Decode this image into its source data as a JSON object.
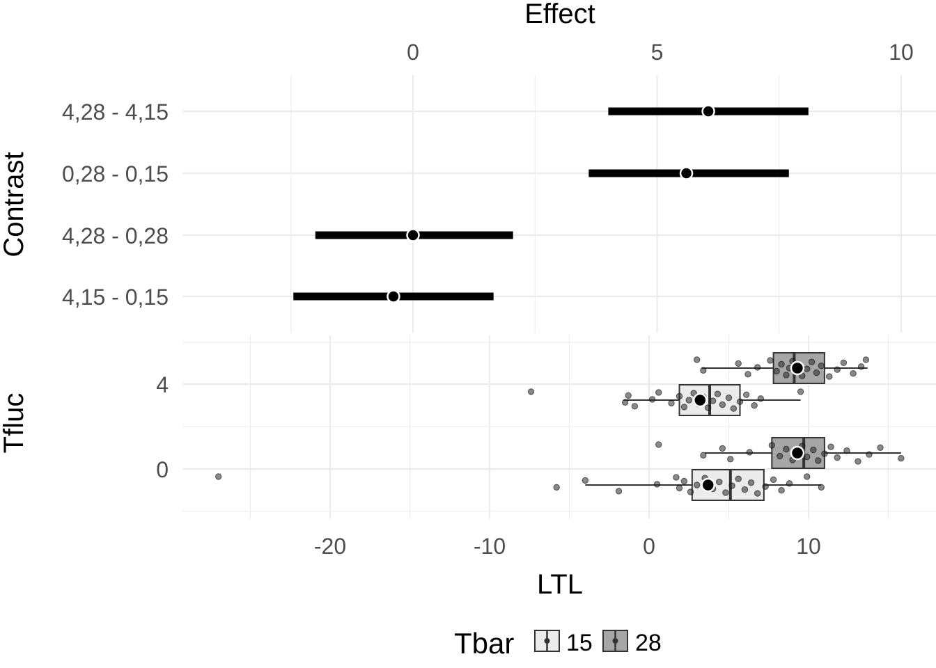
{
  "chart_data": [
    {
      "type": "interval",
      "panel": "top",
      "xlabel": "Effect",
      "ylabel": "Contrast",
      "xaxis_position": "top",
      "xlim": [
        -2.5,
        10.5
      ],
      "xticks": [
        0,
        5,
        10
      ],
      "xtick_labels": [
        "0",
        "5",
        "10"
      ],
      "grid": true,
      "contrasts": [
        {
          "label": "4,28 - 4,15",
          "estimate": 6.05,
          "lower": 4.0,
          "upper": 8.1
        },
        {
          "label": "0,28 - 0,15",
          "estimate": 5.6,
          "lower": 3.6,
          "upper": 7.7
        },
        {
          "label": "4,28 - 0,28",
          "estimate": 0.0,
          "lower": -2.0,
          "upper": 2.05
        },
        {
          "label": "4,15 - 0,15",
          "estimate": -0.4,
          "lower": -2.45,
          "upper": 1.65
        }
      ]
    },
    {
      "type": "boxplot",
      "panel": "bottom",
      "xlabel": "LTL",
      "ylabel": "Tfluc",
      "xlim": [
        -28,
        17
      ],
      "xticks": [
        -20,
        -10,
        0,
        10
      ],
      "xtick_labels": [
        "-20",
        "-10",
        "0",
        "10"
      ],
      "yticks": [
        0,
        4
      ],
      "ytick_labels": [
        "0",
        "4"
      ],
      "grid": true,
      "groups": [
        {
          "tfluc": "4",
          "tbar": "28",
          "fill": "#a6a6a6",
          "whisker_low": 3.3,
          "q1": 7.8,
          "median": 9.1,
          "q3": 11.0,
          "whisker_high": 13.7,
          "mean": 9.3,
          "points": [
            3.0,
            3.4,
            5.6,
            6.2,
            6.8,
            7.6,
            8.0,
            8.3,
            8.6,
            8.8,
            9.0,
            9.2,
            9.4,
            9.6,
            9.9,
            10.2,
            10.5,
            10.8,
            11.3,
            11.8,
            12.2,
            12.8,
            13.3,
            13.6
          ]
        },
        {
          "tfluc": "4",
          "tbar": "15",
          "fill": "#ebebeb",
          "whisker_low": -1.6,
          "q1": 1.9,
          "median": 3.8,
          "q3": 5.7,
          "whisker_high": 9.5,
          "mean": 3.2,
          "points": [
            -7.4,
            -1.5,
            -1.3,
            -0.9,
            0.2,
            0.6,
            1.4,
            1.9,
            2.2,
            2.5,
            2.8,
            3.1,
            3.4,
            3.7,
            4.0,
            4.3,
            4.6,
            5.0,
            5.3,
            5.7,
            6.1,
            6.6,
            7.0,
            9.5
          ]
        },
        {
          "tfluc": "0",
          "tbar": "28",
          "fill": "#a6a6a6",
          "whisker_low": 3.5,
          "q1": 7.7,
          "median": 9.7,
          "q3": 11.0,
          "whisker_high": 15.8,
          "mean": 9.3,
          "points": [
            0.6,
            3.4,
            4.6,
            5.1,
            6.3,
            7.7,
            8.2,
            8.6,
            9.0,
            9.3,
            9.6,
            9.9,
            10.3,
            10.6,
            11.0,
            11.4,
            11.8,
            12.4,
            13.1,
            13.8,
            14.5,
            15.8
          ]
        },
        {
          "tfluc": "0",
          "tbar": "15",
          "fill": "#ebebeb",
          "whisker_low": -4.0,
          "q1": 2.7,
          "median": 5.1,
          "q3": 7.2,
          "whisker_high": 10.8,
          "mean": 3.7,
          "points": [
            -27.0,
            -5.8,
            -4.0,
            -1.9,
            0.5,
            1.7,
            1.9,
            2.2,
            2.6,
            3.0,
            3.5,
            4.0,
            4.4,
            4.8,
            5.2,
            5.6,
            6.0,
            6.4,
            6.8,
            7.3,
            7.8,
            8.3,
            8.8,
            9.9,
            10.8
          ]
        }
      ]
    }
  ],
  "legend": {
    "title": "Tbar",
    "position": "bottom",
    "items": [
      {
        "label": "15",
        "fill": "#ebebeb"
      },
      {
        "label": "28",
        "fill": "#a6a6a6"
      }
    ]
  }
}
